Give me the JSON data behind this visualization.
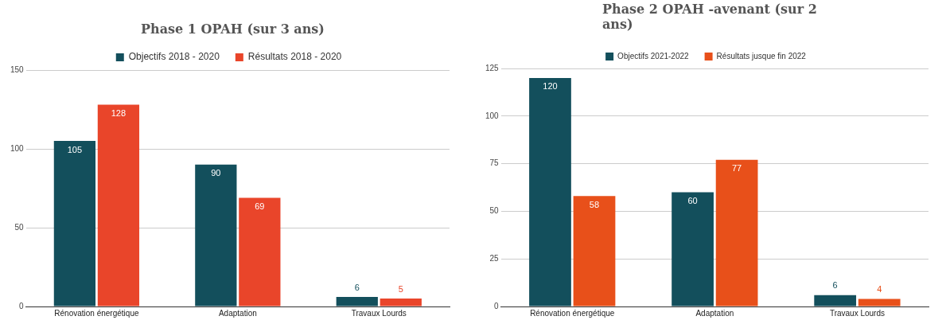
{
  "chart_data": [
    {
      "type": "bar",
      "title": "Phase 1 OPAH (sur 3 ans)",
      "categories": [
        "Rénovation énergétique",
        "Adaptation",
        "Travaux Lourds"
      ],
      "series": [
        {
          "name": "Objectifs 2018 - 2020",
          "color": "#134f5c",
          "values": [
            105,
            90,
            6
          ]
        },
        {
          "name": "Résultats 2018 - 2020",
          "color": "#e9452a",
          "values": [
            128,
            69,
            5
          ]
        }
      ],
      "ylim": [
        0,
        150
      ],
      "yticks": [
        0,
        50,
        100,
        150
      ],
      "grid": "y",
      "legend": "top",
      "data_labels": true
    },
    {
      "type": "bar",
      "title": "Phase 2 OPAH -avenant (sur 2 ans)",
      "categories": [
        "Rénovation énergétique",
        "Adaptation",
        "Travaux Lourds"
      ],
      "series": [
        {
          "name": "Objectifs 2021-2022",
          "color": "#134f5c",
          "values": [
            120,
            60,
            6
          ]
        },
        {
          "name": "Résultats jusque fin 2022",
          "color": "#e8501a",
          "values": [
            58,
            77,
            4
          ]
        }
      ],
      "ylim": [
        0,
        125
      ],
      "yticks": [
        0,
        25,
        50,
        75,
        100,
        125
      ],
      "grid": "y",
      "legend": "top",
      "data_labels": true
    }
  ]
}
